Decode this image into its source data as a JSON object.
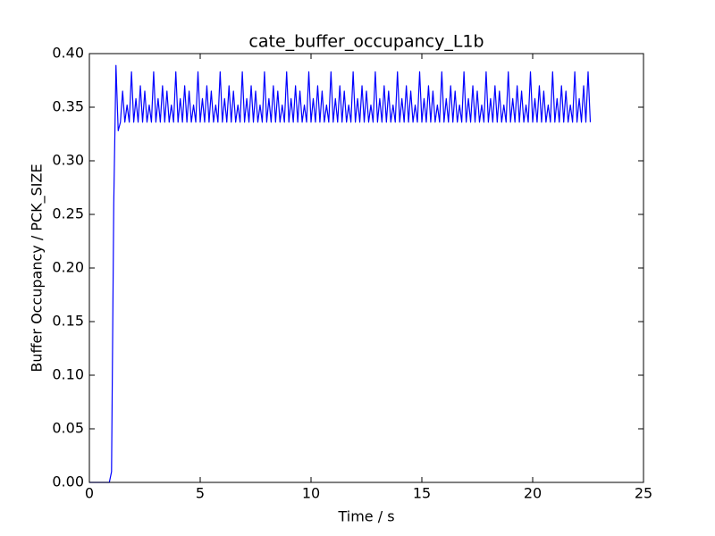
{
  "chart_data": {
    "type": "line",
    "title": "cate_buffer_occupancy_L1b",
    "x_label": "Time / s",
    "y_label": "Buffer Occupancy / PCK_SIZE",
    "color": "#0000ff",
    "xlim": [
      0,
      25
    ],
    "xticks": [
      0,
      5,
      10,
      15,
      20,
      25
    ],
    "ylim": [
      0,
      0.4
    ],
    "yticks": [
      {
        "value": 0,
        "label": "0.00"
      },
      {
        "value": 0.05,
        "label": "0.05"
      },
      {
        "value": 0.1,
        "label": "0.10"
      },
      {
        "value": 0.15,
        "label": "0.15"
      },
      {
        "value": 0.2,
        "label": "0.20"
      },
      {
        "value": 0.25,
        "label": "0.25"
      },
      {
        "value": 0.3,
        "label": "0.30"
      },
      {
        "value": 0.35,
        "label": "0.35"
      },
      {
        "value": 0.4,
        "label": "0.40"
      }
    ],
    "grid": false,
    "x": [
      0,
      0.9,
      1,
      1.1,
      1.2,
      1.3,
      1.4,
      1.5,
      1.6,
      1.7,
      1.8,
      1.9,
      2,
      2.1,
      2.2,
      2.3,
      2.4,
      2.5,
      2.6,
      2.7,
      2.8,
      2.9,
      3,
      3.1,
      3.2,
      3.3,
      3.4,
      3.5,
      3.6,
      3.7,
      3.8,
      3.9,
      4,
      4.1,
      4.2,
      4.3,
      4.4,
      4.5,
      4.6,
      4.7,
      4.8,
      4.9,
      5,
      5.1,
      5.2,
      5.3,
      5.4,
      5.5,
      5.6,
      5.7,
      5.8,
      5.9,
      6,
      6.1,
      6.2,
      6.3,
      6.4,
      6.5,
      6.6,
      6.7,
      6.8,
      6.9,
      7,
      7.1,
      7.2,
      7.3,
      7.4,
      7.5,
      7.6,
      7.7,
      7.8,
      7.9,
      8,
      8.1,
      8.2,
      8.3,
      8.4,
      8.5,
      8.6,
      8.7,
      8.8,
      8.9,
      9,
      9.1,
      9.2,
      9.3,
      9.4,
      9.5,
      9.6,
      9.7,
      9.8,
      9.9,
      10,
      10.1,
      10.2,
      10.3,
      10.4,
      10.5,
      10.6,
      10.7,
      10.8,
      10.9,
      11,
      11.1,
      11.2,
      11.3,
      11.4,
      11.5,
      11.6,
      11.7,
      11.8,
      11.9,
      12,
      12.1,
      12.2,
      12.3,
      12.4,
      12.5,
      12.6,
      12.7,
      12.8,
      12.9,
      13,
      13.1,
      13.2,
      13.3,
      13.4,
      13.5,
      13.6,
      13.7,
      13.8,
      13.9,
      14,
      14.1,
      14.2,
      14.3,
      14.4,
      14.5,
      14.6,
      14.7,
      14.8,
      14.9,
      15,
      15.1,
      15.2,
      15.3,
      15.4,
      15.5,
      15.6,
      15.7,
      15.8,
      15.9,
      16,
      16.1,
      16.2,
      16.3,
      16.4,
      16.5,
      16.6,
      16.7,
      16.8,
      16.9,
      17,
      17.1,
      17.2,
      17.3,
      17.4,
      17.5,
      17.6,
      17.7,
      17.8,
      17.9,
      18,
      18.1,
      18.2,
      18.3,
      18.4,
      18.5,
      18.6,
      18.7,
      18.8,
      18.9,
      19,
      19.1,
      19.2,
      19.3,
      19.4,
      19.5,
      19.6,
      19.7,
      19.8,
      19.9,
      20,
      20.1,
      20.2,
      20.3,
      20.4,
      20.5,
      20.6,
      20.7,
      20.8,
      20.9,
      21,
      21.1,
      21.2,
      21.3,
      21.4,
      21.5,
      21.6,
      21.7,
      21.8,
      21.9,
      22,
      22.1,
      22.2,
      22.3,
      22.4,
      22.5,
      22.6
    ],
    "values": [
      0,
      0,
      0.01,
      0.26,
      0.389,
      0.328,
      0.336,
      0.365,
      0.336,
      0.352,
      0.336,
      0.383,
      0.336,
      0.358,
      0.336,
      0.37,
      0.336,
      0.365,
      0.336,
      0.352,
      0.336,
      0.383,
      0.336,
      0.358,
      0.336,
      0.37,
      0.336,
      0.365,
      0.336,
      0.352,
      0.336,
      0.383,
      0.336,
      0.358,
      0.336,
      0.37,
      0.336,
      0.365,
      0.336,
      0.352,
      0.336,
      0.383,
      0.336,
      0.358,
      0.336,
      0.37,
      0.336,
      0.365,
      0.336,
      0.352,
      0.336,
      0.383,
      0.336,
      0.358,
      0.336,
      0.37,
      0.336,
      0.365,
      0.336,
      0.352,
      0.336,
      0.383,
      0.336,
      0.358,
      0.336,
      0.37,
      0.336,
      0.365,
      0.336,
      0.352,
      0.336,
      0.383,
      0.336,
      0.358,
      0.336,
      0.37,
      0.336,
      0.365,
      0.336,
      0.352,
      0.336,
      0.383,
      0.336,
      0.358,
      0.336,
      0.37,
      0.336,
      0.365,
      0.336,
      0.352,
      0.336,
      0.383,
      0.336,
      0.358,
      0.336,
      0.37,
      0.336,
      0.365,
      0.336,
      0.352,
      0.336,
      0.383,
      0.336,
      0.358,
      0.336,
      0.37,
      0.336,
      0.365,
      0.336,
      0.352,
      0.336,
      0.383,
      0.336,
      0.358,
      0.336,
      0.37,
      0.336,
      0.365,
      0.336,
      0.352,
      0.336,
      0.383,
      0.336,
      0.358,
      0.336,
      0.37,
      0.336,
      0.365,
      0.336,
      0.352,
      0.336,
      0.383,
      0.336,
      0.358,
      0.336,
      0.37,
      0.336,
      0.365,
      0.336,
      0.352,
      0.336,
      0.383,
      0.336,
      0.358,
      0.336,
      0.37,
      0.336,
      0.365,
      0.336,
      0.352,
      0.336,
      0.383,
      0.336,
      0.358,
      0.336,
      0.37,
      0.336,
      0.365,
      0.336,
      0.352,
      0.336,
      0.383,
      0.336,
      0.358,
      0.336,
      0.37,
      0.336,
      0.365,
      0.336,
      0.352,
      0.336,
      0.383,
      0.336,
      0.358,
      0.336,
      0.37,
      0.336,
      0.365,
      0.336,
      0.352,
      0.336,
      0.383,
      0.336,
      0.358,
      0.336,
      0.37,
      0.336,
      0.365,
      0.336,
      0.352,
      0.336,
      0.383,
      0.336,
      0.358,
      0.336,
      0.37,
      0.336,
      0.365,
      0.336,
      0.352,
      0.336,
      0.383,
      0.336,
      0.358,
      0.336,
      0.37,
      0.336,
      0.365,
      0.336,
      0.352,
      0.336,
      0.383,
      0.336,
      0.358,
      0.336,
      0.37,
      0.336,
      0.383,
      0.336
    ]
  }
}
